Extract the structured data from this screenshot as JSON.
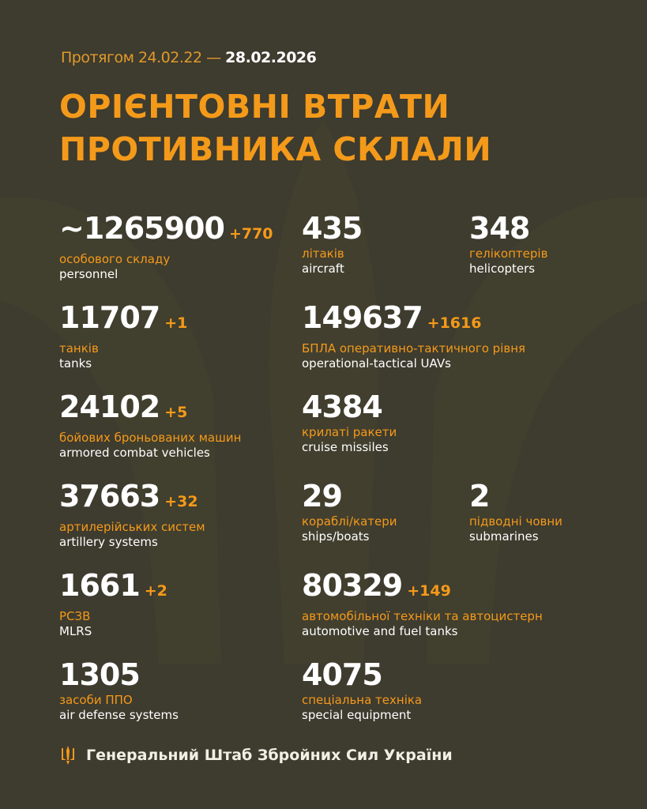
{
  "header": {
    "period_prefix": "Протягом 24.02.22 —",
    "period_date": "28.02.2026",
    "title_line1": "ОРІЄНТОВНІ ВТРАТИ",
    "title_line2": "ПРОТИВНИКА СКЛАЛИ"
  },
  "colors": {
    "background": "#3e3b2f",
    "accent": "#f49a1a",
    "text": "#ffffff"
  },
  "stats": [
    {
      "value": "~1265900",
      "delta": "+770",
      "ua": "особового складу",
      "en": "personnel"
    },
    {
      "value": "435",
      "delta": "",
      "ua": "літаків",
      "en": "aircraft"
    },
    {
      "value": "348",
      "delta": "",
      "ua": "гелікоптерів",
      "en": "helicopters"
    },
    {
      "value": "11707",
      "delta": "+1",
      "ua": "танків",
      "en": "tanks"
    },
    {
      "value": "149637",
      "delta": "+1616",
      "ua": "БПЛА оперативно-тактичного рівня",
      "en": "operational-tactical UAVs"
    },
    {
      "value": "24102",
      "delta": "+5",
      "ua": "бойових броньованих машин",
      "en": "armored combat vehicles"
    },
    {
      "value": "4384",
      "delta": "",
      "ua": "крилаті ракети",
      "en": "cruise missiles"
    },
    {
      "value": "37663",
      "delta": "+32",
      "ua": "артилерійських систем",
      "en": "artillery systems"
    },
    {
      "value": "29",
      "delta": "",
      "ua": "кораблі/катери",
      "en": "ships/boats"
    },
    {
      "value": "2",
      "delta": "",
      "ua": "підводні човни",
      "en": "submarines"
    },
    {
      "value": "1661",
      "delta": "+2",
      "ua": "РСЗВ",
      "en": "MLRS"
    },
    {
      "value": "80329",
      "delta": "+149",
      "ua": "автомобільної техніки та автоцистерн",
      "en": "automotive and fuel tanks"
    },
    {
      "value": "1305",
      "delta": "",
      "ua": "засоби ППО",
      "en": "air defense systems"
    },
    {
      "value": "4075",
      "delta": "",
      "ua": "спеціальна техніка",
      "en": "special equipment"
    }
  ],
  "footer": {
    "icon": "trident-icon",
    "text": "Генеральний Штаб Збройних Сил України"
  }
}
